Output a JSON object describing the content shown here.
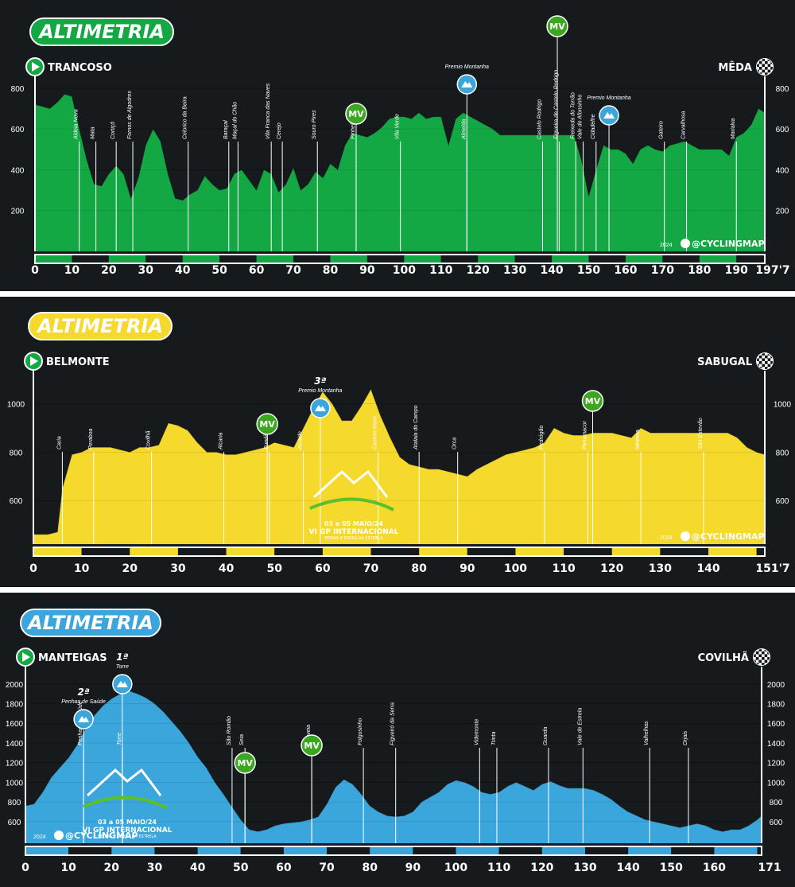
{
  "chart_data": [
    {
      "type": "area",
      "title": "ALTIMETRIA",
      "color": "#14a844",
      "start": "TRANCOSO",
      "finish": "MÊDA",
      "x_max_label": "197'7",
      "x_ticks": [
        0,
        10,
        20,
        30,
        40,
        50,
        60,
        70,
        80,
        90,
        100,
        110,
        120,
        130,
        140,
        150,
        160,
        170,
        180,
        190
      ],
      "xlim": [
        0,
        197.7
      ],
      "y_ticks": [
        200,
        400,
        600,
        800
      ],
      "ylim": [
        0,
        850
      ],
      "grid": true,
      "y_ticks_both_sides": true,
      "watermark": "@CYCLINGMAP",
      "watermark_year": "2024",
      "profile": {
        "x": [
          0,
          2,
          4,
          6,
          8,
          10,
          12,
          14,
          16,
          18,
          20,
          22,
          24,
          26,
          28,
          30,
          32,
          34,
          36,
          38,
          40,
          42,
          44,
          46,
          48,
          50,
          52,
          54,
          56,
          58,
          60,
          62,
          64,
          66,
          68,
          70,
          72,
          74,
          76,
          78,
          80,
          82,
          84,
          86,
          88,
          90,
          92,
          94,
          96,
          98,
          100,
          102,
          104,
          106,
          108,
          110,
          112,
          114,
          116,
          118,
          120,
          122,
          124,
          126,
          128,
          130,
          132,
          134,
          136,
          138,
          140,
          142,
          144,
          146,
          148,
          150,
          152,
          154,
          156,
          158,
          160,
          162,
          164,
          166,
          168,
          170,
          172,
          174,
          176,
          178,
          180,
          182,
          184,
          186,
          188,
          190,
          192,
          194,
          196,
          197.7
        ],
        "y": [
          720,
          710,
          700,
          730,
          770,
          760,
          600,
          450,
          330,
          320,
          380,
          420,
          380,
          260,
          360,
          520,
          600,
          540,
          380,
          260,
          250,
          280,
          300,
          370,
          330,
          300,
          310,
          380,
          400,
          350,
          300,
          400,
          380,
          290,
          330,
          410,
          300,
          330,
          390,
          360,
          430,
          400,
          520,
          580,
          570,
          560,
          580,
          610,
          650,
          660,
          660,
          650,
          680,
          650,
          660,
          660,
          520,
          650,
          680,
          660,
          640,
          620,
          600,
          570,
          570,
          570,
          570,
          570,
          570,
          570,
          570,
          570,
          570,
          570,
          450,
          270,
          400,
          520,
          500,
          500,
          480,
          430,
          500,
          520,
          500,
          490,
          520,
          530,
          540,
          520,
          500,
          500,
          500,
          500,
          470,
          560,
          580,
          620,
          700,
          680
        ]
      },
      "waypoints": [
        {
          "name": "Aldeia Nova",
          "km": 12
        },
        {
          "name": "Mata",
          "km": 16.5
        },
        {
          "name": "Cortiçô",
          "km": 22
        },
        {
          "name": "Fornos de Algodres",
          "km": 26.5
        },
        {
          "name": "Celorico da Beira",
          "km": 41.5
        },
        {
          "name": "Baraçal",
          "km": 52.5
        },
        {
          "name": "Maçal do Chão",
          "km": 55
        },
        {
          "name": "Vila Franca das Naves",
          "km": 64
        },
        {
          "name": "Cerejo",
          "km": 67
        },
        {
          "name": "Souro Pires",
          "km": 76.5
        },
        {
          "name": "Pinhel",
          "km": 87
        },
        {
          "name": "Vila Verde",
          "km": 99
        },
        {
          "name": "Almeida",
          "km": 117
        },
        {
          "name": "Castelo Rodrigo",
          "km": 137.5
        },
        {
          "name": "Figueira de Castelo Rodrigo",
          "km": 142
        },
        {
          "name": "Freixeda do Torrão",
          "km": 146.5
        },
        {
          "name": "Vale de Afonsinho",
          "km": 148.5
        },
        {
          "name": "Cidadelhe",
          "km": 152
        },
        {
          "name": "Gateiro",
          "km": 170.5
        },
        {
          "name": "Carvalhosa",
          "km": 176.5
        },
        {
          "name": "Marialva",
          "km": 190
        }
      ],
      "kom": [
        {
          "label": "Premio Montanha",
          "km": 117,
          "category": ""
        },
        {
          "label": "Premio Montanha",
          "km": 155.5,
          "category": ""
        }
      ],
      "sprints": [
        {
          "label": "MV",
          "km": 87
        },
        {
          "label": "MV",
          "km": 141.5
        }
      ]
    },
    {
      "type": "area",
      "title": "ALTIMETRIA",
      "color": "#f5d92c",
      "start": "BELMONTE",
      "finish": "SABUGAL",
      "x_max_label": "151'7",
      "x_ticks": [
        0,
        10,
        20,
        30,
        40,
        50,
        60,
        70,
        80,
        90,
        100,
        110,
        120,
        130,
        140
      ],
      "xlim": [
        0,
        151.7
      ],
      "y_ticks": [
        600,
        800,
        1000
      ],
      "ylim": [
        420,
        1130
      ],
      "grid": true,
      "y_ticks_both_sides": true,
      "watermark": "@CYCLINGMAP",
      "watermark_year": "2024",
      "event_logo": [
        "03 a 05 MAIO/24",
        "VI GP INTERNACIONAL",
        "BEIRAS E SERRA DA ESTRELA"
      ],
      "profile": {
        "x": [
          0,
          3,
          5,
          6,
          8,
          10,
          12,
          14,
          16,
          18,
          20,
          22,
          24,
          26,
          28,
          30,
          32,
          34,
          36,
          38,
          40,
          42,
          44,
          46,
          48,
          50,
          52,
          54,
          56,
          58,
          60,
          62,
          64,
          66,
          68,
          70,
          72,
          74,
          76,
          78,
          80,
          82,
          84,
          86,
          88,
          90,
          92,
          94,
          96,
          98,
          100,
          102,
          104,
          106,
          108,
          110,
          112,
          114,
          116,
          118,
          120,
          122,
          124,
          126,
          128,
          130,
          132,
          134,
          136,
          138,
          140,
          142,
          144,
          146,
          148,
          150,
          151.7
        ],
        "y": [
          460,
          460,
          470,
          650,
          790,
          800,
          820,
          820,
          820,
          810,
          800,
          820,
          820,
          830,
          920,
          910,
          890,
          840,
          800,
          800,
          790,
          790,
          800,
          810,
          820,
          840,
          830,
          820,
          900,
          980,
          1050,
          1000,
          930,
          930,
          990,
          1060,
          950,
          860,
          780,
          750,
          740,
          730,
          730,
          720,
          710,
          700,
          730,
          750,
          770,
          790,
          800,
          810,
          820,
          840,
          900,
          880,
          870,
          870,
          880,
          880,
          880,
          870,
          860,
          900,
          880,
          880,
          880,
          880,
          880,
          880,
          880,
          880,
          880,
          860,
          820,
          800,
          790
        ]
      },
      "waypoints": [
        {
          "name": "Caria",
          "km": 6
        },
        {
          "name": "Peraboa",
          "km": 12.5
        },
        {
          "name": "Covilhã",
          "km": 24.5
        },
        {
          "name": "Alcaria",
          "km": 39.5
        },
        {
          "name": "Fundão",
          "km": 49
        },
        {
          "name": "Alcaide",
          "km": 56
        },
        {
          "name": "Castelo Novo",
          "km": 71.5
        },
        {
          "name": "Atalaia do Campo",
          "km": 80
        },
        {
          "name": "Orca",
          "km": 88
        },
        {
          "name": "Pedrógão",
          "km": 106
        },
        {
          "name": "Penamacor",
          "km": 115
        },
        {
          "name": "Meimoa",
          "km": 126
        },
        {
          "name": "São Estevão",
          "km": 139
        }
      ],
      "kom": [
        {
          "label": "Premio Montanha",
          "km": 59.5,
          "category": "3ª"
        }
      ],
      "sprints": [
        {
          "label": "MV",
          "km": 48.5
        },
        {
          "label": "MV",
          "km": 116
        }
      ]
    },
    {
      "type": "area",
      "title": "ALTIMETRIA",
      "color": "#3aa6dc",
      "start": "MANTEIGAS",
      "finish": "COVILHÃ",
      "x_max_label": "171",
      "x_ticks": [
        0,
        10,
        20,
        30,
        40,
        50,
        60,
        70,
        80,
        90,
        100,
        110,
        120,
        130,
        140,
        150,
        160
      ],
      "xlim": [
        0,
        171
      ],
      "y_ticks": [
        600,
        800,
        1000,
        1200,
        1400,
        1600,
        1800,
        2000
      ],
      "ylim": [
        380,
        2160
      ],
      "grid": true,
      "y_ticks_both_sides": true,
      "watermark": "@CYCLINGMAP",
      "watermark_year": "2024",
      "event_logo": [
        "03 a 05 MAIO/24",
        "VI GP INTERNACIONAL",
        "BEIRAS E SERRA DA ESTRELA"
      ],
      "profile": {
        "x": [
          0,
          2,
          4,
          6,
          8,
          10,
          12,
          14,
          16,
          18,
          20,
          22,
          24,
          26,
          28,
          30,
          32,
          34,
          36,
          38,
          40,
          42,
          44,
          46,
          48,
          50,
          52,
          54,
          56,
          58,
          60,
          62,
          64,
          66,
          68,
          70,
          72,
          74,
          76,
          78,
          80,
          82,
          84,
          86,
          88,
          90,
          92,
          94,
          96,
          98,
          100,
          102,
          104,
          106,
          108,
          110,
          112,
          114,
          116,
          118,
          120,
          122,
          124,
          126,
          128,
          130,
          132,
          134,
          136,
          138,
          140,
          142,
          144,
          146,
          148,
          150,
          152,
          154,
          156,
          158,
          160,
          162,
          164,
          166,
          168,
          170,
          171
        ],
        "y": [
          760,
          780,
          900,
          1050,
          1150,
          1250,
          1380,
          1550,
          1680,
          1780,
          1850,
          1900,
          1930,
          1900,
          1860,
          1800,
          1720,
          1620,
          1520,
          1400,
          1260,
          1150,
          1000,
          880,
          750,
          620,
          520,
          500,
          520,
          560,
          580,
          590,
          600,
          620,
          650,
          780,
          950,
          1030,
          980,
          880,
          760,
          700,
          660,
          650,
          660,
          700,
          800,
          850,
          900,
          980,
          1020,
          1000,
          960,
          900,
          880,
          900,
          960,
          1000,
          960,
          920,
          980,
          1010,
          970,
          940,
          940,
          940,
          920,
          880,
          830,
          760,
          700,
          660,
          620,
          600,
          580,
          560,
          540,
          560,
          580,
          560,
          520,
          500,
          520,
          520,
          560,
          620,
          660
        ]
      },
      "waypoints": [
        {
          "name": "Penhas de Saúde",
          "km": 13.5
        },
        {
          "name": "Torre",
          "km": 22.5
        },
        {
          "name": "São Romão",
          "km": 48
        },
        {
          "name": "Seia",
          "km": 51
        },
        {
          "name": "Gouveia",
          "km": 66.5
        },
        {
          "name": "Folgosinho",
          "km": 78.5
        },
        {
          "name": "Figueiró da Serra",
          "km": 86
        },
        {
          "name": "Videmonte",
          "km": 105.5
        },
        {
          "name": "Trinta",
          "km": 109.5
        },
        {
          "name": "Guarda",
          "km": 121.5
        },
        {
          "name": "Vale de Estrela",
          "km": 129.5
        },
        {
          "name": "Valhelhas",
          "km": 145
        },
        {
          "name": "Orjais",
          "km": 154
        }
      ],
      "kom": [
        {
          "label": "Penhas de Saúde",
          "km": 13.5,
          "category": "2ª"
        },
        {
          "label": "Torre",
          "km": 22.5,
          "category": "1ª"
        }
      ],
      "sprints": [
        {
          "label": "MV",
          "km": 51
        },
        {
          "label": "MV",
          "km": 66.5
        }
      ]
    }
  ]
}
